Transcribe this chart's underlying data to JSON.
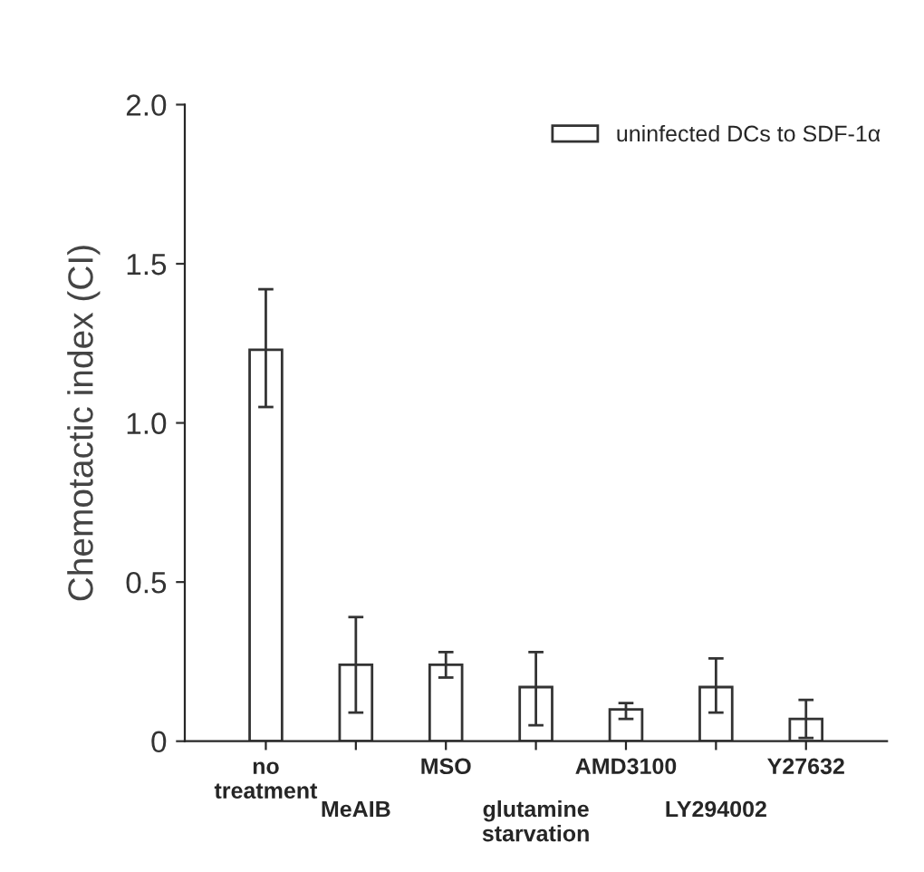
{
  "chart_data": {
    "type": "bar",
    "categories": [
      "no\ntreatment",
      "MeAIB",
      "MSO",
      "glutamine\nstarvation",
      "AMD3100",
      "LY294002",
      "Y27632"
    ],
    "series": [
      {
        "name": "uninfected DCs to SDF-1α",
        "color": "#333333",
        "values": [
          1.23,
          0.24,
          0.24,
          0.17,
          0.1,
          0.17,
          0.07
        ],
        "errors": [
          [
            1.05,
            1.42
          ],
          [
            0.09,
            0.39
          ],
          [
            0.2,
            0.28
          ],
          [
            0.05,
            0.28
          ],
          [
            0.07,
            0.12
          ],
          [
            0.09,
            0.26
          ],
          [
            0.01,
            0.13
          ]
        ]
      }
    ],
    "ylabel": "Chemotactic index (CI)",
    "ylim": [
      0,
      2.0
    ],
    "yticks": [
      {
        "value": 0,
        "label": "0"
      },
      0.5,
      {
        "value": 1,
        "label": "1.0"
      },
      1.5,
      {
        "value": 2,
        "label": "2.0"
      }
    ],
    "grid": false,
    "legend": "top right"
  }
}
